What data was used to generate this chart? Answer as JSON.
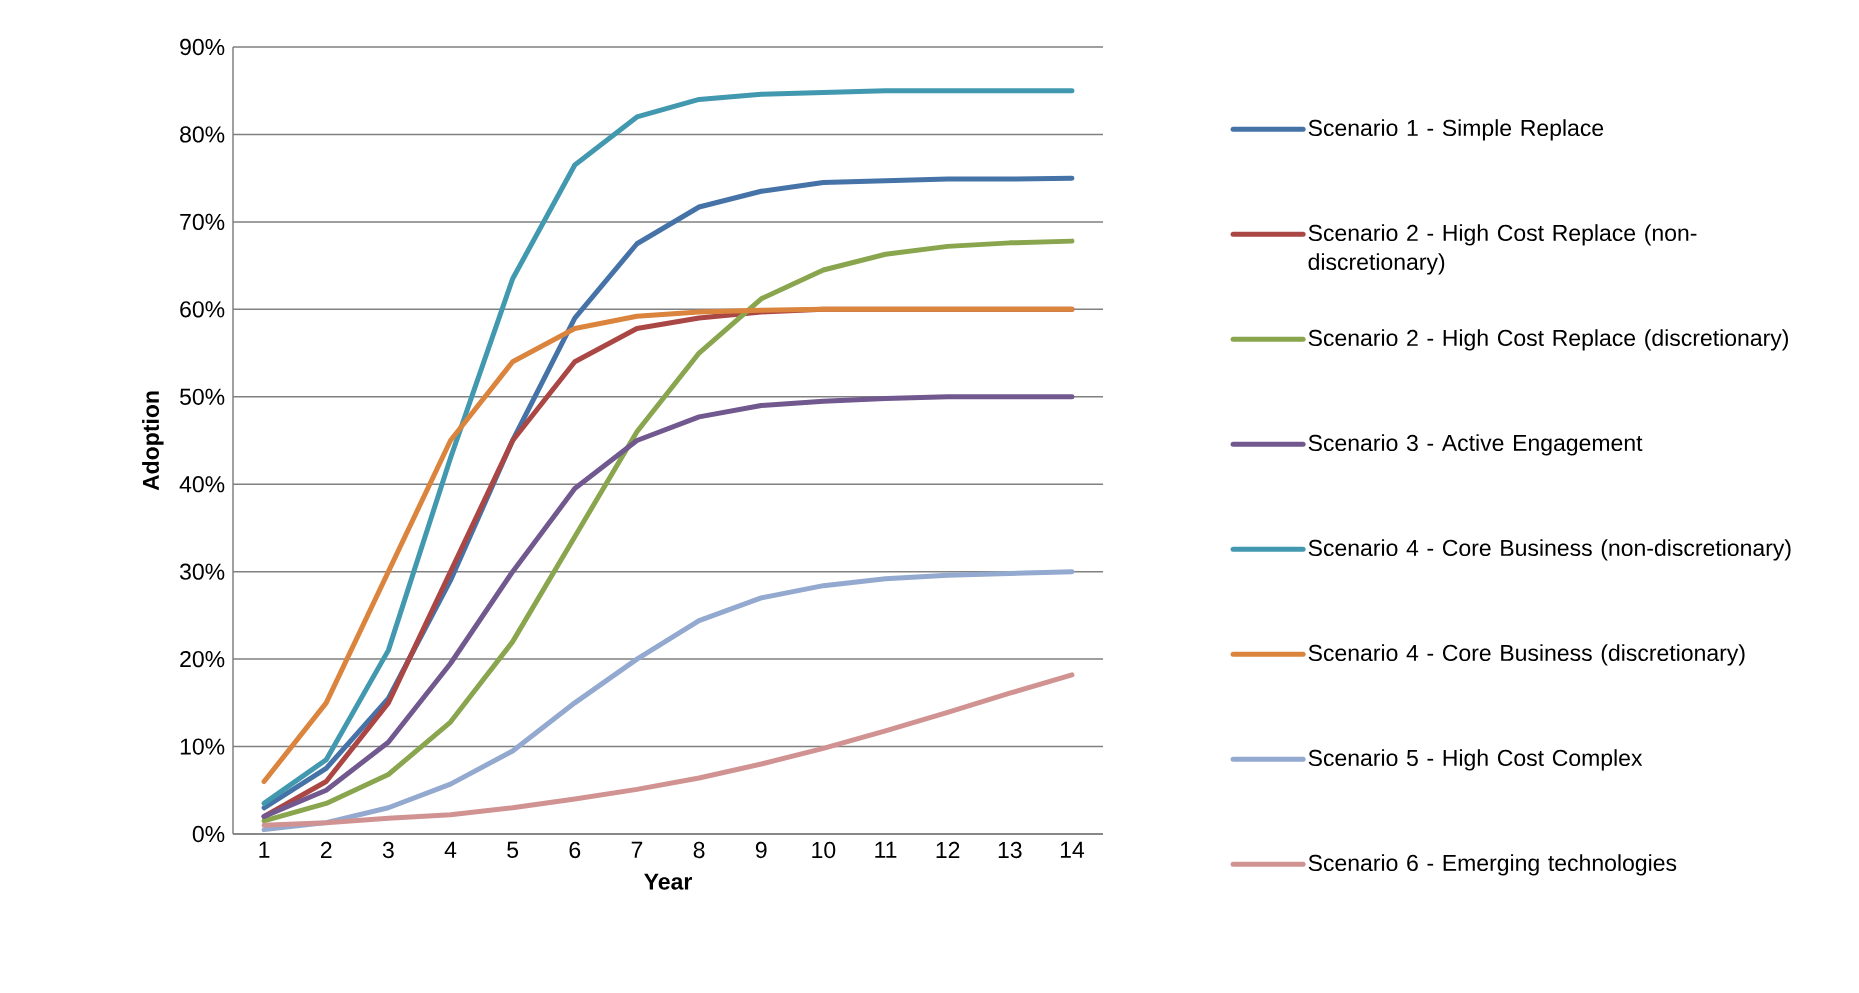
{
  "chart_data": {
    "type": "line",
    "xlabel": "Year",
    "ylabel": "Adoption",
    "categories": [
      "1",
      "2",
      "3",
      "4",
      "5",
      "6",
      "7",
      "8",
      "9",
      "10",
      "11",
      "12",
      "13",
      "14"
    ],
    "ylim": [
      0,
      90
    ],
    "yticks": [
      {
        "value": 0,
        "label": "0%"
      },
      {
        "value": 10,
        "label": "10%"
      },
      {
        "value": 20,
        "label": "20%"
      },
      {
        "value": 30,
        "label": "30%"
      },
      {
        "value": 40,
        "label": "40%"
      },
      {
        "value": 50,
        "label": "50%"
      },
      {
        "value": 60,
        "label": "60%"
      },
      {
        "value": 70,
        "label": "70%"
      },
      {
        "value": 80,
        "label": "80%"
      },
      {
        "value": 90,
        "label": "90%"
      }
    ],
    "grid": "y",
    "legend": "right",
    "marker": "none",
    "line_style": "solid",
    "series": [
      {
        "name": "Scenario 1 - Simple Replace",
        "color": "#4572a7",
        "values": [
          3,
          7.5,
          15.5,
          29,
          45,
          59,
          67.5,
          71.7,
          73.5,
          74.5,
          74.7,
          74.9,
          74.9,
          75
        ]
      },
      {
        "name": "Scenario 2 - High Cost Replace (non-discretionary)",
        "color": "#aa4643",
        "values": [
          2,
          6,
          15,
          30,
          45,
          54,
          57.8,
          59,
          59.7,
          60,
          60,
          60,
          60,
          60
        ]
      },
      {
        "name": "Scenario 2 - High Cost Replace (discretionary)",
        "color": "#89a54e",
        "values": [
          1.5,
          3.5,
          6.8,
          12.8,
          22,
          34,
          46,
          55,
          61.2,
          64.5,
          66.3,
          67.2,
          67.6,
          67.8
        ]
      },
      {
        "name": "Scenario 3 - Active Engagement",
        "color": "#71588f",
        "values": [
          2,
          5,
          10.5,
          19.5,
          30,
          39.5,
          45,
          47.7,
          49,
          49.5,
          49.8,
          50,
          50,
          50
        ]
      },
      {
        "name": "Scenario 4 - Core Business (non-discretionary)",
        "color": "#4198af",
        "values": [
          3.5,
          8.5,
          21,
          43,
          63.5,
          76.5,
          82,
          84,
          84.6,
          84.8,
          85,
          85,
          85,
          85
        ]
      },
      {
        "name": "Scenario 4 - Core Business (discretionary)",
        "color": "#db843d",
        "values": [
          6,
          15,
          30,
          45,
          54,
          57.8,
          59.2,
          59.7,
          59.9,
          60,
          60,
          60,
          60,
          60
        ]
      },
      {
        "name": "Scenario 5 - High Cost Complex",
        "color": "#93a9cf",
        "values": [
          0.5,
          1.3,
          3,
          5.7,
          9.5,
          15,
          20,
          24.4,
          27,
          28.4,
          29.2,
          29.6,
          29.8,
          30
        ]
      },
      {
        "name": "Scenario 6 - Emerging technologies",
        "color": "#d19392",
        "values": [
          1,
          1.3,
          1.8,
          2.2,
          3,
          4,
          5.1,
          6.4,
          8,
          9.8,
          11.8,
          13.9,
          16.1,
          18.2
        ]
      }
    ]
  }
}
